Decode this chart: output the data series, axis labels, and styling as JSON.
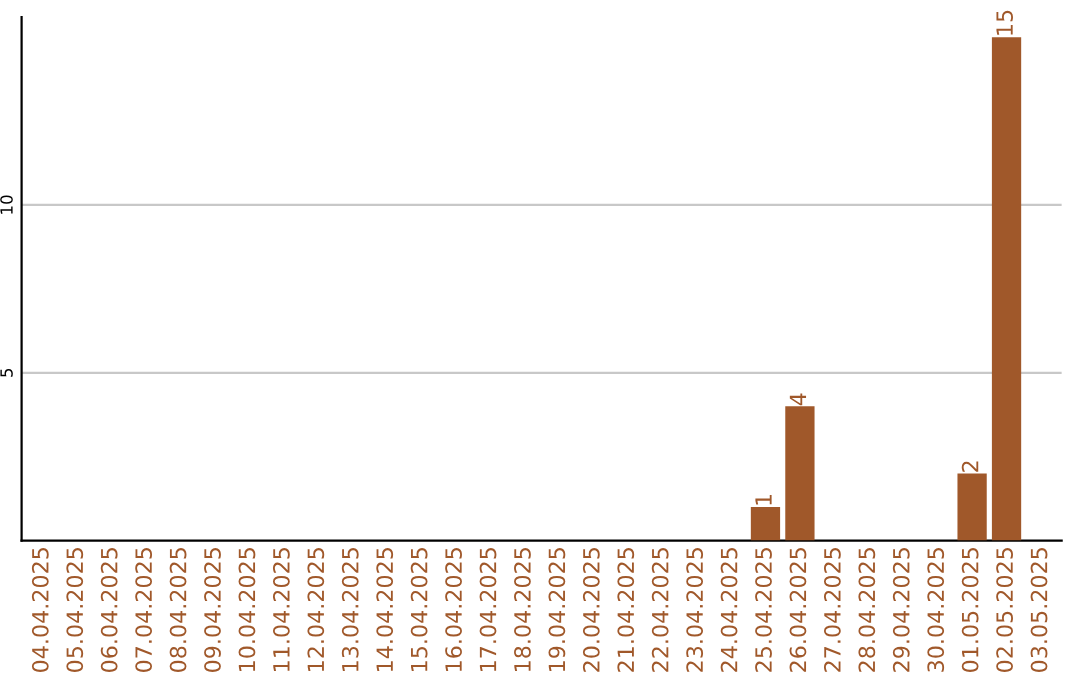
{
  "chart_data": {
    "type": "bar",
    "categories": [
      "04.04.2025",
      "05.04.2025",
      "06.04.2025",
      "07.04.2025",
      "08.04.2025",
      "09.04.2025",
      "10.04.2025",
      "11.04.2025",
      "12.04.2025",
      "13.04.2025",
      "14.04.2025",
      "15.04.2025",
      "16.04.2025",
      "17.04.2025",
      "18.04.2025",
      "19.04.2025",
      "20.04.2025",
      "21.04.2025",
      "22.04.2025",
      "23.04.2025",
      "24.04.2025",
      "25.04.2025",
      "26.04.2025",
      "27.04.2025",
      "28.04.2025",
      "29.04.2025",
      "30.04.2025",
      "01.05.2025",
      "02.05.2025",
      "03.05.2025"
    ],
    "values": [
      0,
      0,
      0,
      0,
      0,
      0,
      0,
      0,
      0,
      0,
      0,
      0,
      0,
      0,
      0,
      0,
      0,
      0,
      0,
      0,
      0,
      1,
      4,
      0,
      0,
      0,
      0,
      2,
      15,
      0
    ],
    "value_labels": [
      null,
      null,
      null,
      null,
      null,
      null,
      null,
      null,
      null,
      null,
      null,
      null,
      null,
      null,
      null,
      null,
      null,
      null,
      null,
      null,
      null,
      "1",
      "4",
      null,
      null,
      null,
      null,
      "2",
      "15",
      null
    ],
    "color": "#a0582a",
    "ylim": [
      0,
      15.6
    ],
    "yticks": [
      5,
      10
    ],
    "grid": "y"
  }
}
